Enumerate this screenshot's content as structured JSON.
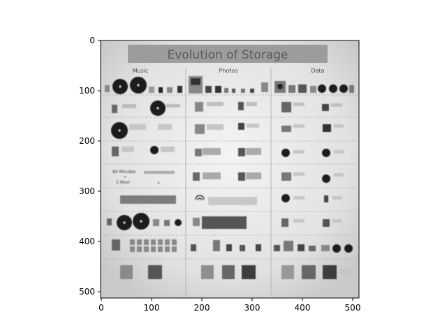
{
  "infographic": {
    "title": "Evolution of Storage",
    "columns": [
      "Music",
      "Photos",
      "Data"
    ],
    "music_labels": [
      "60 Minutes",
      "=",
      "1 Hour"
    ]
  },
  "axes": {
    "x_ticks": [
      "0",
      "100",
      "200",
      "300",
      "400",
      "500"
    ],
    "y_ticks": [
      "0",
      "100",
      "200",
      "300",
      "400",
      "500"
    ]
  }
}
